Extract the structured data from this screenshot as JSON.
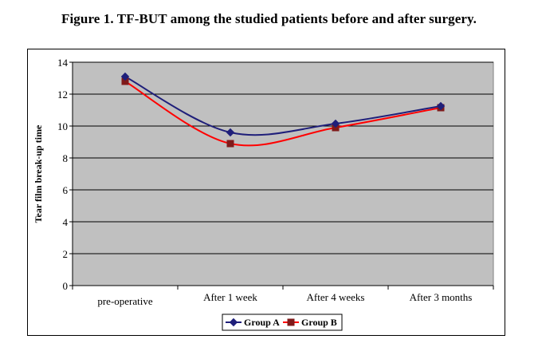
{
  "figure_title": "Figure 1. TF-BUT among the studied patients before and after surgery.",
  "chart_data": {
    "type": "line",
    "categories": [
      "pre-operative",
      "After 1 week",
      "After 4 weeks",
      "After 3 months"
    ],
    "series": [
      {
        "name": "Group A",
        "values": [
          13.1,
          9.6,
          10.15,
          11.25
        ],
        "color": "#1f1f7a",
        "marker": "diamond"
      },
      {
        "name": "Group B",
        "values": [
          12.8,
          8.9,
          9.9,
          11.15
        ],
        "color": "#ff0000",
        "marker_color": "#7f1a1a",
        "marker": "square"
      }
    ],
    "ylabel": "Tear film break-up time",
    "xlabel": "",
    "ylim": [
      0,
      14
    ],
    "yticks": [
      0,
      2,
      4,
      6,
      8,
      10,
      12,
      14
    ],
    "plot_background": "#c0c0c0",
    "grid": true,
    "legend": "bottom-center",
    "smooth": true
  }
}
